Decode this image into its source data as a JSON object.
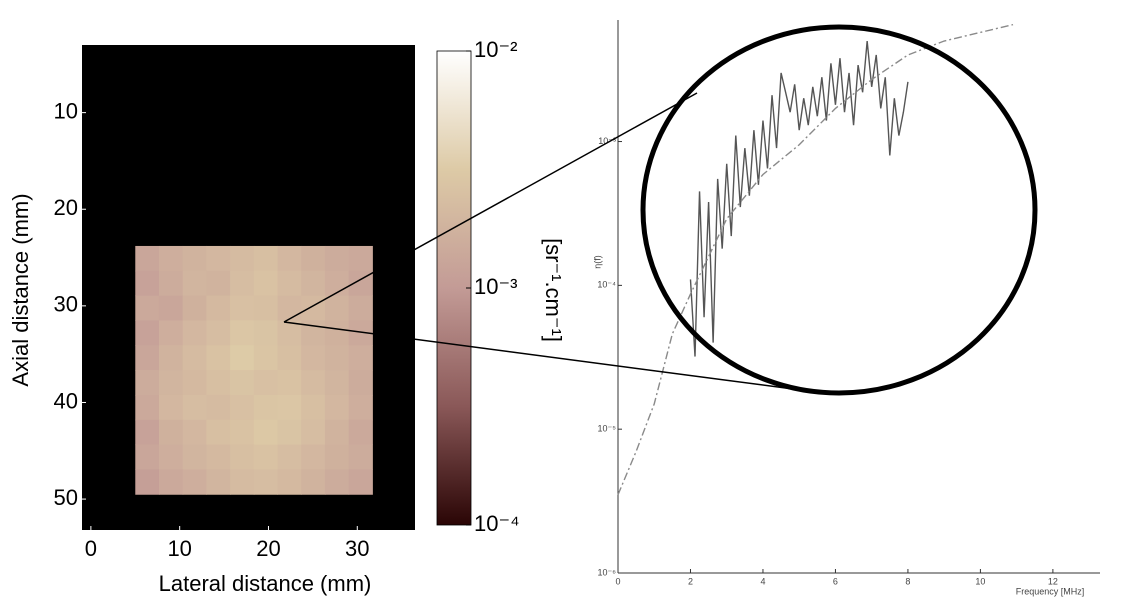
{
  "chart_data": [
    {
      "type": "heatmap",
      "xlabel": "Lateral distance (mm)",
      "ylabel": "Axial distance (mm)",
      "xlim": [
        -1,
        36.5
      ],
      "ylim": [
        53.2,
        3
      ],
      "xticks": [
        0,
        10,
        20,
        30
      ],
      "yticks": [
        10,
        20,
        30,
        40,
        50
      ],
      "extent": {
        "x": [
          5,
          31.7
        ],
        "y": [
          23.8,
          49.5
        ]
      },
      "z": [
        [
          0.0013,
          0.0016,
          0.0018,
          0.002,
          0.0022,
          0.0024,
          0.002,
          0.0017,
          0.0015,
          0.0014
        ],
        [
          0.0012,
          0.0015,
          0.0019,
          0.0018,
          0.0023,
          0.0026,
          0.0022,
          0.0019,
          0.0016,
          0.0013
        ],
        [
          0.0014,
          0.0013,
          0.0017,
          0.0021,
          0.0025,
          0.0024,
          0.002,
          0.0021,
          0.0018,
          0.0015
        ],
        [
          0.0012,
          0.0016,
          0.002,
          0.0023,
          0.0029,
          0.0027,
          0.0023,
          0.0019,
          0.0017,
          0.0014
        ],
        [
          0.0013,
          0.0018,
          0.0022,
          0.0026,
          0.0032,
          0.0028,
          0.0024,
          0.002,
          0.0018,
          0.0016
        ],
        [
          0.0015,
          0.0019,
          0.0021,
          0.0024,
          0.0027,
          0.0025,
          0.0026,
          0.0022,
          0.0019,
          0.0015
        ],
        [
          0.0014,
          0.002,
          0.0023,
          0.0022,
          0.0025,
          0.0028,
          0.0029,
          0.0024,
          0.002,
          0.0016
        ],
        [
          0.0012,
          0.0017,
          0.002,
          0.0024,
          0.0026,
          0.003,
          0.0027,
          0.0023,
          0.0018,
          0.0014
        ],
        [
          0.0013,
          0.0016,
          0.0019,
          0.0021,
          0.0024,
          0.0026,
          0.0023,
          0.002,
          0.0017,
          0.0015
        ],
        [
          0.0011,
          0.0014,
          0.0016,
          0.0019,
          0.0022,
          0.0023,
          0.0021,
          0.0018,
          0.0015,
          0.0013
        ]
      ],
      "clim": [
        0.0001,
        0.01
      ],
      "clog": true,
      "cticks": [
        {
          "value": 0.01,
          "label": "10⁻²"
        },
        {
          "value": 0.001,
          "label": "10⁻³"
        },
        {
          "value": 0.0001,
          "label": "10⁻⁴"
        }
      ],
      "clabel": "[sr⁻¹.cm⁻¹]",
      "colormap": [
        "#2a0505",
        "#8a5858",
        "#c39b96",
        "#ddcaa6",
        "#ffffff"
      ]
    },
    {
      "type": "line",
      "xlabel": "Frequency [MHz]",
      "ylabel": "η(f)",
      "xlim": [
        0,
        13.3
      ],
      "ylim": [
        1e-06,
        0.007
      ],
      "ylog": true,
      "xticks": [
        0,
        2,
        4,
        6,
        8,
        10,
        12
      ],
      "yticks": [
        {
          "value": 1e-06,
          "label": "10⁻⁶"
        },
        {
          "value": 1e-05,
          "label": "10⁻⁵"
        },
        {
          "value": 0.0001,
          "label": "10⁻⁴"
        },
        {
          "value": 0.001,
          "label": "10⁻³"
        }
      ],
      "series": [
        {
          "color": "#555555",
          "line_style": "solid",
          "x": [
            2,
            2.125,
            2.25,
            2.375,
            2.5,
            2.625,
            2.75,
            2.875,
            3,
            3.125,
            3.25,
            3.375,
            3.5,
            3.625,
            3.75,
            3.875,
            4,
            4.125,
            4.25,
            4.375,
            4.5,
            4.625,
            4.75,
            4.875,
            5,
            5.125,
            5.25,
            5.375,
            5.5,
            5.625,
            5.75,
            5.875,
            6,
            6.125,
            6.25,
            6.375,
            6.5,
            6.625,
            6.75,
            6.875,
            7,
            7.125,
            7.25,
            7.375,
            7.5,
            7.625,
            7.75,
            7.875,
            8
          ],
          "values": [
            0.00011,
            3.2e-05,
            0.00045,
            6e-05,
            0.00038,
            4e-05,
            0.00055,
            0.00018,
            0.0007,
            0.00022,
            0.0011,
            0.00035,
            0.0009,
            0.00042,
            0.0012,
            0.0005,
            0.0014,
            0.00065,
            0.0021,
            0.0009,
            0.003,
            0.0022,
            0.0016,
            0.0025,
            0.0012,
            0.002,
            0.0013,
            0.0024,
            0.0015,
            0.0028,
            0.0014,
            0.0035,
            0.0018,
            0.0038,
            0.0016,
            0.003,
            0.0013,
            0.0034,
            0.0022,
            0.005,
            0.0024,
            0.004,
            0.0017,
            0.0028,
            0.0008,
            0.002,
            0.0011,
            0.0016,
            0.0026
          ]
        },
        {
          "color": "#8a8a8a",
          "line_style": "dashdot",
          "x": [
            0,
            0.5,
            1,
            1.5,
            2,
            3,
            4,
            5,
            6,
            7,
            8,
            9,
            10.9
          ],
          "values": [
            3.5e-06,
            7e-06,
            1.5e-05,
            4.6e-05,
            8.7e-05,
            0.00029,
            0.00059,
            0.00095,
            0.0017,
            0.0027,
            0.004,
            0.005,
            0.0065
          ]
        }
      ]
    }
  ]
}
